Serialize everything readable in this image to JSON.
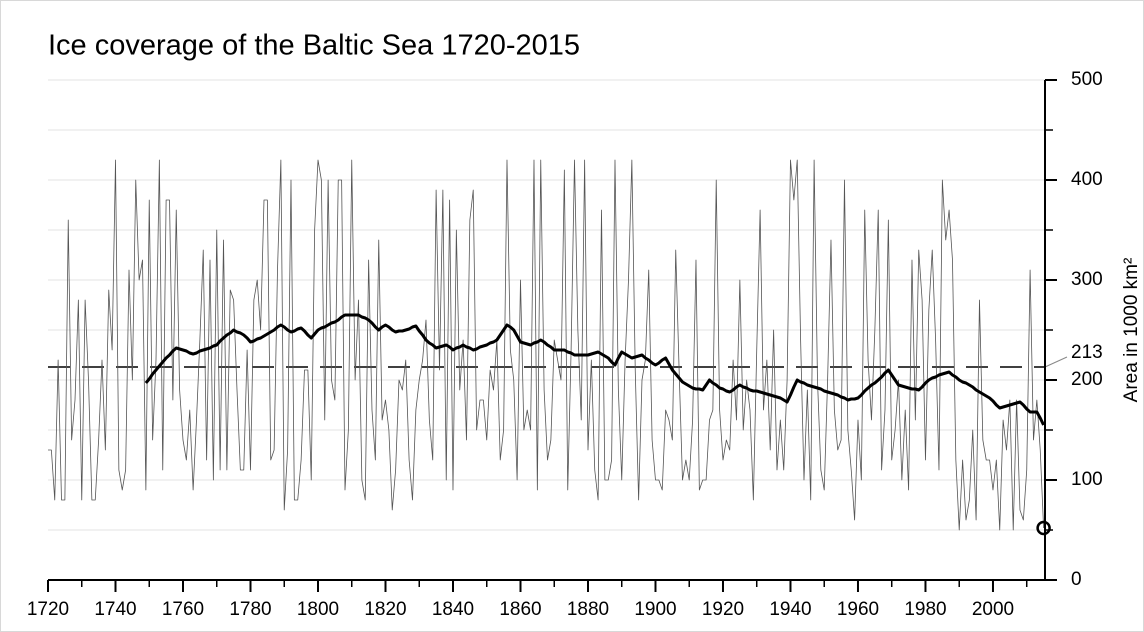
{
  "chart_data": {
    "type": "line",
    "title": "Ice coverage of the Baltic Sea 1720-2015",
    "y_axis_label": "Area in 1000 km²",
    "xlim": [
      1720,
      2015
    ],
    "xticks": [
      1720,
      1740,
      1760,
      1780,
      1800,
      1820,
      1840,
      1860,
      1880,
      1900,
      1920,
      1940,
      1960,
      1980,
      2000
    ],
    "xminor_ticks": [
      1730,
      1750,
      1770,
      1790,
      1810,
      1830,
      1850,
      1870,
      1890,
      1910,
      1930,
      1950,
      1970,
      1990,
      2010
    ],
    "ylim": [
      0,
      500
    ],
    "yticks": [
      0,
      100,
      200,
      300,
      400,
      500
    ],
    "yminor_ticks": [
      50,
      150,
      250,
      350,
      450
    ],
    "grid": true,
    "reference_line": {
      "value": 213,
      "color": "#000000",
      "dashed": true
    },
    "highlight_last": true,
    "x": [
      1720,
      1721,
      1722,
      1723,
      1724,
      1725,
      1726,
      1727,
      1728,
      1729,
      1730,
      1731,
      1732,
      1733,
      1734,
      1735,
      1736,
      1737,
      1738,
      1739,
      1740,
      1741,
      1742,
      1743,
      1744,
      1745,
      1746,
      1747,
      1748,
      1749,
      1750,
      1751,
      1752,
      1753,
      1754,
      1755,
      1756,
      1757,
      1758,
      1759,
      1760,
      1761,
      1762,
      1763,
      1764,
      1765,
      1766,
      1767,
      1768,
      1769,
      1770,
      1771,
      1772,
      1773,
      1774,
      1775,
      1776,
      1777,
      1778,
      1779,
      1780,
      1781,
      1782,
      1783,
      1784,
      1785,
      1786,
      1787,
      1788,
      1789,
      1790,
      1791,
      1792,
      1793,
      1794,
      1795,
      1796,
      1797,
      1798,
      1799,
      1800,
      1801,
      1802,
      1803,
      1804,
      1805,
      1806,
      1807,
      1808,
      1809,
      1810,
      1811,
      1812,
      1813,
      1814,
      1815,
      1816,
      1817,
      1818,
      1819,
      1820,
      1821,
      1822,
      1823,
      1824,
      1825,
      1826,
      1827,
      1828,
      1829,
      1830,
      1831,
      1832,
      1833,
      1834,
      1835,
      1836,
      1837,
      1838,
      1839,
      1840,
      1841,
      1842,
      1843,
      1844,
      1845,
      1846,
      1847,
      1848,
      1849,
      1850,
      1851,
      1852,
      1853,
      1854,
      1855,
      1856,
      1857,
      1858,
      1859,
      1860,
      1861,
      1862,
      1863,
      1864,
      1865,
      1866,
      1867,
      1868,
      1869,
      1870,
      1871,
      1872,
      1873,
      1874,
      1875,
      1876,
      1877,
      1878,
      1879,
      1880,
      1881,
      1882,
      1883,
      1884,
      1885,
      1886,
      1887,
      1888,
      1889,
      1890,
      1891,
      1892,
      1893,
      1894,
      1895,
      1896,
      1897,
      1898,
      1899,
      1900,
      1901,
      1902,
      1903,
      1904,
      1905,
      1906,
      1907,
      1908,
      1909,
      1910,
      1911,
      1912,
      1913,
      1914,
      1915,
      1916,
      1917,
      1918,
      1919,
      1920,
      1921,
      1922,
      1923,
      1924,
      1925,
      1926,
      1927,
      1928,
      1929,
      1930,
      1931,
      1932,
      1933,
      1934,
      1935,
      1936,
      1937,
      1938,
      1939,
      1940,
      1941,
      1942,
      1943,
      1944,
      1945,
      1946,
      1947,
      1948,
      1949,
      1950,
      1951,
      1952,
      1953,
      1954,
      1955,
      1956,
      1957,
      1958,
      1959,
      1960,
      1961,
      1962,
      1963,
      1964,
      1965,
      1966,
      1967,
      1968,
      1969,
      1970,
      1971,
      1972,
      1973,
      1974,
      1975,
      1976,
      1977,
      1978,
      1979,
      1980,
      1981,
      1982,
      1983,
      1984,
      1985,
      1986,
      1987,
      1988,
      1989,
      1990,
      1991,
      1992,
      1993,
      1994,
      1995,
      1996,
      1997,
      1998,
      1999,
      2000,
      2001,
      2002,
      2003,
      2004,
      2005,
      2006,
      2007,
      2008,
      2009,
      2010,
      2011,
      2012,
      2013,
      2014,
      2015
    ],
    "series": [
      {
        "color": "#555555",
        "width": 0.8,
        "values": [
          130,
          130,
          80,
          220,
          80,
          80,
          360,
          140,
          180,
          280,
          80,
          280,
          200,
          80,
          80,
          140,
          220,
          130,
          290,
          230,
          420,
          110,
          90,
          110,
          310,
          200,
          400,
          300,
          320,
          90,
          380,
          140,
          220,
          420,
          110,
          380,
          380,
          180,
          370,
          190,
          140,
          120,
          170,
          90,
          160,
          240,
          330,
          120,
          320,
          100,
          350,
          110,
          340,
          110,
          290,
          280,
          190,
          110,
          110,
          230,
          110,
          280,
          300,
          250,
          380,
          380,
          120,
          130,
          310,
          420,
          70,
          130,
          400,
          80,
          80,
          120,
          210,
          210,
          100,
          350,
          420,
          400,
          160,
          400,
          200,
          180,
          400,
          400,
          90,
          150,
          420,
          200,
          280,
          100,
          80,
          320,
          170,
          120,
          340,
          160,
          180,
          150,
          70,
          110,
          200,
          190,
          220,
          120,
          80,
          170,
          200,
          220,
          260,
          160,
          120,
          390,
          210,
          390,
          100,
          380,
          90,
          350,
          190,
          240,
          140,
          360,
          390,
          150,
          180,
          180,
          140,
          210,
          190,
          240,
          120,
          150,
          420,
          230,
          200,
          100,
          300,
          150,
          170,
          150,
          420,
          90,
          420,
          190,
          120,
          140,
          240,
          220,
          200,
          410,
          90,
          230,
          420,
          250,
          160,
          420,
          130,
          220,
          110,
          80,
          370,
          100,
          100,
          120,
          420,
          190,
          100,
          220,
          300,
          420,
          210,
          80,
          200,
          220,
          310,
          140,
          100,
          100,
          90,
          170,
          160,
          140,
          330,
          210,
          100,
          120,
          100,
          160,
          320,
          90,
          100,
          100,
          160,
          170,
          400,
          170,
          120,
          140,
          130,
          220,
          160,
          300,
          150,
          200,
          170,
          80,
          230,
          370,
          170,
          220,
          130,
          250,
          110,
          160,
          110,
          200,
          420,
          380,
          420,
          240,
          100,
          190,
          80,
          420,
          200,
          110,
          90,
          200,
          340,
          170,
          130,
          140,
          400,
          150,
          110,
          60,
          160,
          100,
          370,
          220,
          160,
          250,
          370,
          110,
          170,
          360,
          120,
          150,
          200,
          100,
          170,
          90,
          320,
          160,
          330,
          280,
          120,
          270,
          330,
          240,
          110,
          400,
          340,
          370,
          320,
          120,
          50,
          120,
          60,
          80,
          150,
          60,
          280,
          140,
          120,
          120,
          90,
          120,
          50,
          160,
          130,
          180,
          50,
          180,
          70,
          60,
          110,
          310,
          140,
          180,
          130,
          52
        ]
      },
      {
        "color": "#000000",
        "width": 3,
        "values": [
          null,
          null,
          null,
          null,
          null,
          null,
          null,
          null,
          null,
          null,
          null,
          null,
          null,
          null,
          null,
          null,
          null,
          null,
          null,
          null,
          null,
          null,
          null,
          null,
          null,
          null,
          null,
          null,
          null,
          197,
          201,
          206,
          210,
          214,
          218,
          222,
          225,
          229,
          232,
          231,
          230,
          229,
          227,
          226,
          227,
          229,
          230,
          231,
          232,
          234,
          235,
          239,
          242,
          245,
          247,
          250,
          248,
          247,
          245,
          242,
          238,
          239,
          241,
          242,
          244,
          246,
          248,
          250,
          253,
          255,
          253,
          250,
          248,
          249,
          251,
          252,
          249,
          245,
          242,
          246,
          250,
          252,
          253,
          255,
          257,
          258,
          260,
          263,
          265,
          265,
          265,
          265,
          265,
          263,
          262,
          260,
          257,
          253,
          250,
          253,
          255,
          253,
          250,
          248,
          249,
          249,
          250,
          251,
          253,
          254,
          249,
          245,
          240,
          237,
          235,
          232,
          233,
          234,
          235,
          233,
          230,
          232,
          233,
          235,
          233,
          232,
          230,
          231,
          233,
          234,
          235,
          237,
          238,
          240,
          245,
          250,
          255,
          253,
          250,
          244,
          238,
          237,
          236,
          235,
          237,
          238,
          240,
          238,
          235,
          233,
          230,
          230,
          230,
          230,
          228,
          227,
          225,
          225,
          225,
          225,
          225,
          226,
          227,
          228,
          226,
          224,
          222,
          218,
          215,
          222,
          228,
          226,
          224,
          222,
          223,
          224,
          225,
          222,
          220,
          217,
          215,
          217,
          220,
          222,
          216,
          210,
          206,
          202,
          198,
          196,
          194,
          192,
          191,
          191,
          190,
          195,
          200,
          197,
          195,
          192,
          191,
          189,
          188,
          190,
          193,
          195,
          193,
          192,
          190,
          189,
          189,
          188,
          187,
          186,
          185,
          184,
          183,
          182,
          180,
          178,
          185,
          193,
          200,
          198,
          197,
          195,
          194,
          193,
          192,
          191,
          189,
          188,
          187,
          186,
          185,
          183,
          182,
          180,
          181,
          181,
          182,
          185,
          189,
          192,
          195,
          197,
          200,
          203,
          207,
          210,
          205,
          200,
          195,
          194,
          193,
          192,
          191,
          191,
          190,
          193,
          197,
          200,
          202,
          203,
          205,
          206,
          207,
          208,
          205,
          203,
          200,
          198,
          197,
          195,
          193,
          190,
          188,
          186,
          184,
          182,
          179,
          175,
          172,
          173,
          174,
          175,
          176,
          177,
          178,
          175,
          171,
          168,
          168,
          168,
          162,
          155
        ]
      }
    ]
  }
}
